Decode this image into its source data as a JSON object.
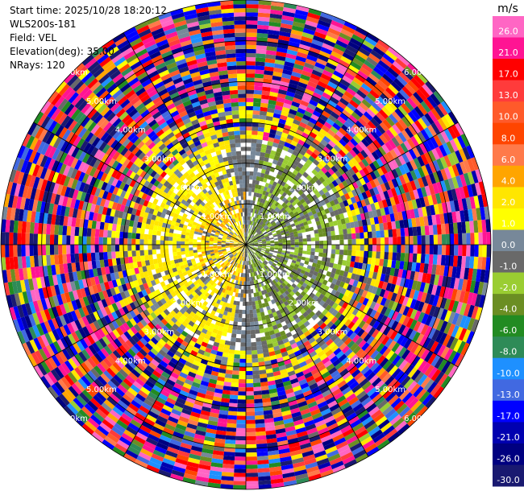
{
  "header": {
    "start_time": "Start time: 2025/10/28 18:20:12",
    "site": "WLS200s-181",
    "field": "Field: VEL",
    "elevation": "Elevation(deg): 35.00",
    "nrays": "NRays: 120"
  },
  "chart_data": {
    "type": "heatmap",
    "projection": "polar-ppi",
    "field": "VEL",
    "units": "m/s",
    "elevation_deg": 35.0,
    "n_rays": 120,
    "range_rings_km": [
      1,
      2,
      3,
      4,
      5,
      6
    ],
    "range_ring_labels": [
      "1.00km",
      "2.00km",
      "3.00km",
      "4.00km",
      "5.00km",
      "6.00km"
    ],
    "max_range_km": 6.0,
    "colorbar": {
      "title": "m/s",
      "tick_labels": [
        "26.0",
        "21.0",
        "17.0",
        "13.0",
        "10.0",
        "8.0",
        "6.0",
        "4.0",
        "2.0",
        "1.0",
        "0.0",
        "-1.0",
        "-2.0",
        "-4.0",
        "-6.0",
        "-8.0",
        "-10.0",
        "-13.0",
        "-17.0",
        "-21.0",
        "-26.0",
        "-30.0"
      ],
      "bins": [
        {
          "min": 26.0,
          "max": 30.0,
          "color": "#ff66c4"
        },
        {
          "min": 21.0,
          "max": 26.0,
          "color": "#ff1493"
        },
        {
          "min": 17.0,
          "max": 21.0,
          "color": "#ff0000"
        },
        {
          "min": 13.0,
          "max": 17.0,
          "color": "#ff3b3b"
        },
        {
          "min": 10.0,
          "max": 13.0,
          "color": "#ff5a2a"
        },
        {
          "min": 8.0,
          "max": 10.0,
          "color": "#ff4500"
        },
        {
          "min": 6.0,
          "max": 8.0,
          "color": "#ff7a4a"
        },
        {
          "min": 4.0,
          "max": 6.0,
          "color": "#ffa500"
        },
        {
          "min": 2.0,
          "max": 4.0,
          "color": "#ffe600"
        },
        {
          "min": 1.0,
          "max": 2.0,
          "color": "#ffff00"
        },
        {
          "min": 0.0,
          "max": 1.0,
          "color": "#778899"
        },
        {
          "min": -1.0,
          "max": 0.0,
          "color": "#696969"
        },
        {
          "min": -2.0,
          "max": -1.0,
          "color": "#9acd32"
        },
        {
          "min": -4.0,
          "max": -2.0,
          "color": "#6b8e23"
        },
        {
          "min": -6.0,
          "max": -4.0,
          "color": "#228b22"
        },
        {
          "min": -8.0,
          "max": -6.0,
          "color": "#2e8b57"
        },
        {
          "min": -10.0,
          "max": -8.0,
          "color": "#1e90ff"
        },
        {
          "min": -13.0,
          "max": -10.0,
          "color": "#4169e1"
        },
        {
          "min": -17.0,
          "max": -13.0,
          "color": "#0000ff"
        },
        {
          "min": -21.0,
          "max": -17.0,
          "color": "#0000b0"
        },
        {
          "min": -26.0,
          "max": -21.0,
          "color": "#000080"
        },
        {
          "min": -30.0,
          "max": -26.0,
          "color": "#191970"
        }
      ]
    }
  }
}
